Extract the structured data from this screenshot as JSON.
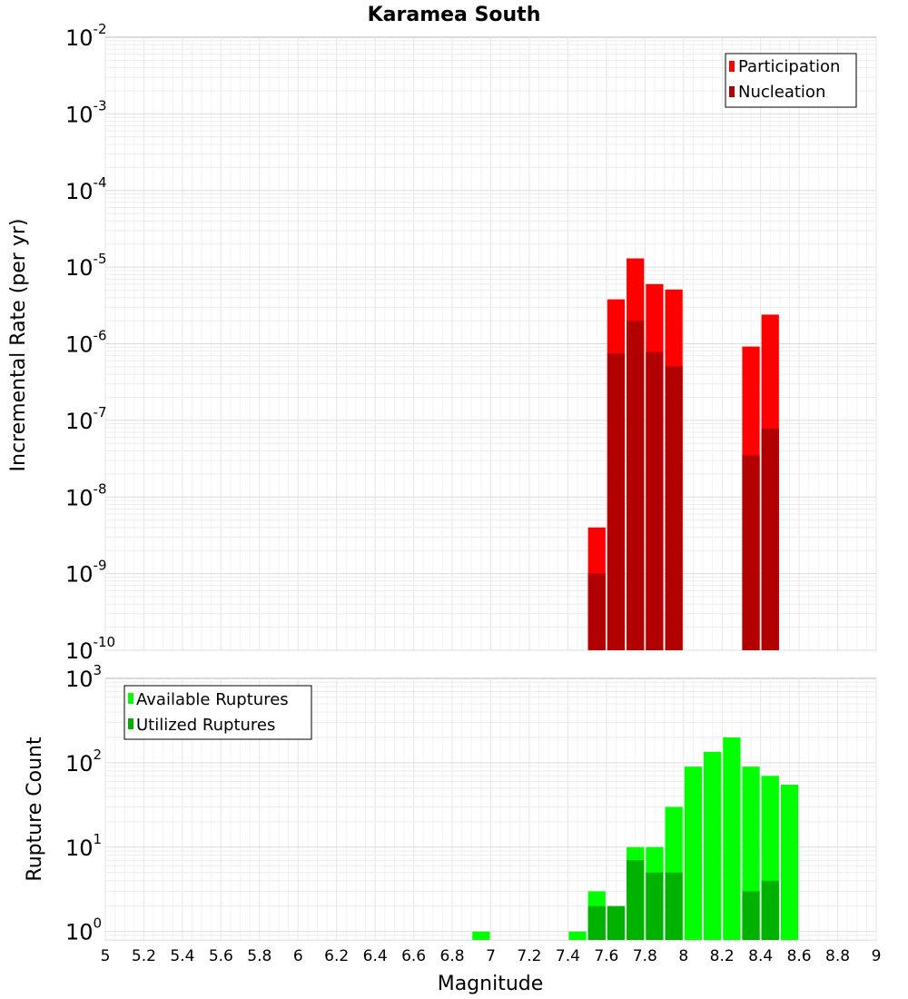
{
  "chart_data": {
    "title": "Karamea South",
    "xlabel": "Magnitude",
    "xlim": [
      5,
      9
    ],
    "x_ticks": [
      "5",
      "5.2",
      "5.4",
      "5.6",
      "5.8",
      "6",
      "6.2",
      "6.4",
      "6.6",
      "6.8",
      "7",
      "7.2",
      "7.4",
      "7.6",
      "7.8",
      "8",
      "8.2",
      "8.4",
      "8.6",
      "8.8",
      "9"
    ],
    "bin_width": 0.1,
    "panels": [
      {
        "type": "bar",
        "ylabel": "Incremental Rate (per yr)",
        "yscale": "log",
        "ylim_exp": [
          -10,
          -2
        ],
        "y_ticks": [
          {
            "base": "10",
            "exp": "-2"
          },
          {
            "base": "10",
            "exp": "-3"
          },
          {
            "base": "10",
            "exp": "-4"
          },
          {
            "base": "10",
            "exp": "-5"
          },
          {
            "base": "10",
            "exp": "-6"
          },
          {
            "base": "10",
            "exp": "-7"
          },
          {
            "base": "10",
            "exp": "-8"
          },
          {
            "base": "10",
            "exp": "-9"
          },
          {
            "base": "10",
            "exp": "-10"
          }
        ],
        "legend": [
          "Participation",
          "Nucleation"
        ],
        "legend_position": "top-right",
        "series": [
          {
            "name": "Participation",
            "color": "#ff0000",
            "x": [
              7.55,
              7.65,
              7.75,
              7.85,
              7.95,
              8.35,
              8.45
            ],
            "values": [
              4e-09,
              3.8e-06,
              1.3e-05,
              6e-06,
              5.1e-06,
              9.2e-07,
              2.4e-06
            ]
          },
          {
            "name": "Nucleation",
            "color": "#b20000",
            "x": [
              7.55,
              7.65,
              7.75,
              7.85,
              7.95,
              8.35,
              8.45
            ],
            "values": [
              1e-09,
              7.5e-07,
              2e-06,
              7.8e-07,
              5.1e-07,
              3.5e-08,
              7.8e-08
            ]
          }
        ]
      },
      {
        "type": "bar",
        "ylabel": "Rupture Count",
        "yscale": "log",
        "ylim_exp": [
          -0.1,
          3
        ],
        "y_ticks": [
          {
            "base": "10",
            "exp": "3"
          },
          {
            "base": "10",
            "exp": "2"
          },
          {
            "base": "10",
            "exp": "1"
          },
          {
            "base": "10",
            "exp": "0"
          }
        ],
        "legend": [
          "Available Ruptures",
          "Utilized Ruptures"
        ],
        "legend_position": "top-left",
        "series": [
          {
            "name": "Available Ruptures",
            "color": "#00ff00",
            "x": [
              6.95,
              7.45,
              7.55,
              7.65,
              7.75,
              7.85,
              7.95,
              8.05,
              8.15,
              8.25,
              8.35,
              8.45,
              8.55
            ],
            "values": [
              1,
              1,
              3,
              2,
              10,
              10,
              30,
              90,
              135,
              200,
              90,
              70,
              55
            ]
          },
          {
            "name": "Utilized Ruptures",
            "color": "#00b200",
            "x": [
              7.55,
              7.65,
              7.75,
              7.85,
              7.95,
              8.35,
              8.45
            ],
            "values": [
              2,
              2,
              7,
              5,
              5,
              3,
              4
            ]
          }
        ]
      }
    ]
  }
}
